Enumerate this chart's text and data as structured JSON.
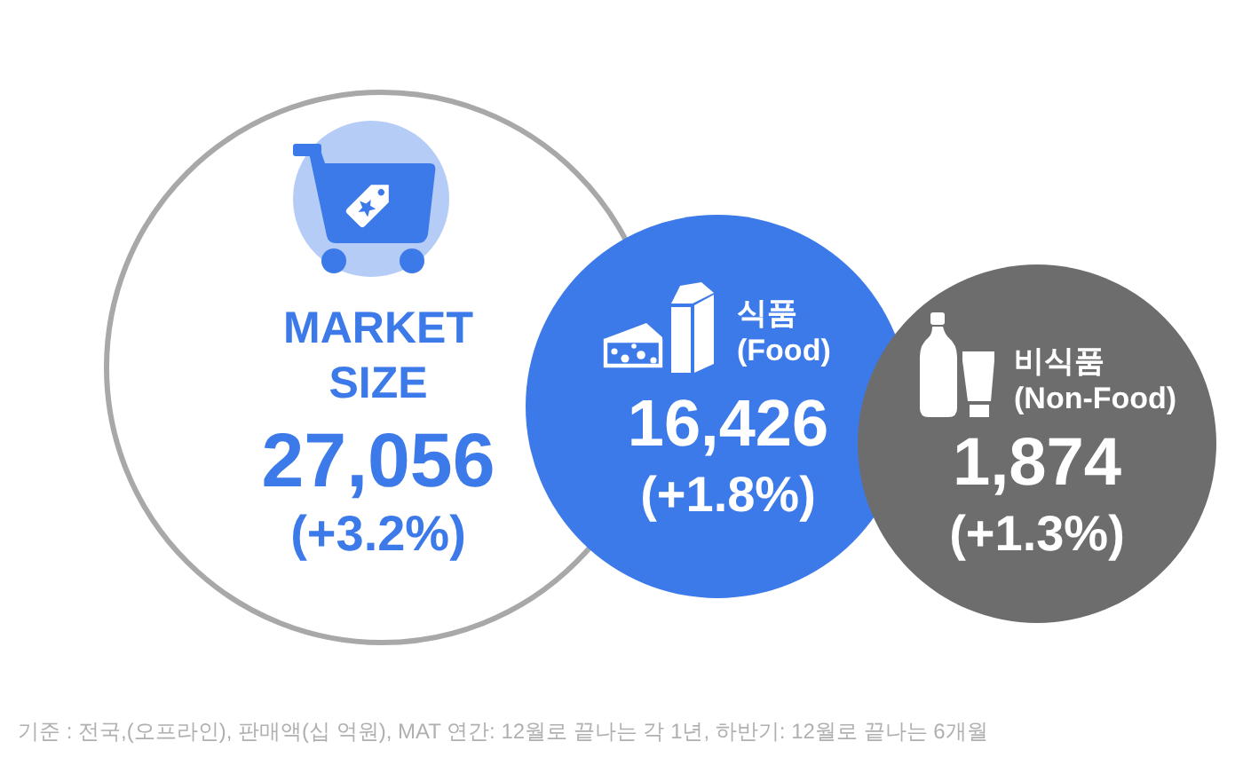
{
  "chart_data": {
    "type": "other",
    "categories": [
      "MARKET\nSIZE",
      "식품\n(Food)",
      "비식품\n(Non-Food)"
    ],
    "series": [
      {
        "values": [
          27056,
          16426,
          1874
        ],
        "value_labels": [
          "27,056",
          "16,426",
          "1,874"
        ],
        "colors": [
          "#ffffff",
          "#3c79e9",
          "#6d6d6d"
        ]
      },
      {
        "values": [
          3.2,
          1.8,
          1.3
        ],
        "value_labels": [
          "(+3.2%)",
          "(+1.8%)",
          "(+1.3%)"
        ]
      }
    ],
    "annotations": [
      "기준 : 전국,(오프라인), 판매액(십 억원), MAT 연간:  12월로 끝나는 각 1년, 하반기: 12월로 끝나는 6개월"
    ]
  }
}
